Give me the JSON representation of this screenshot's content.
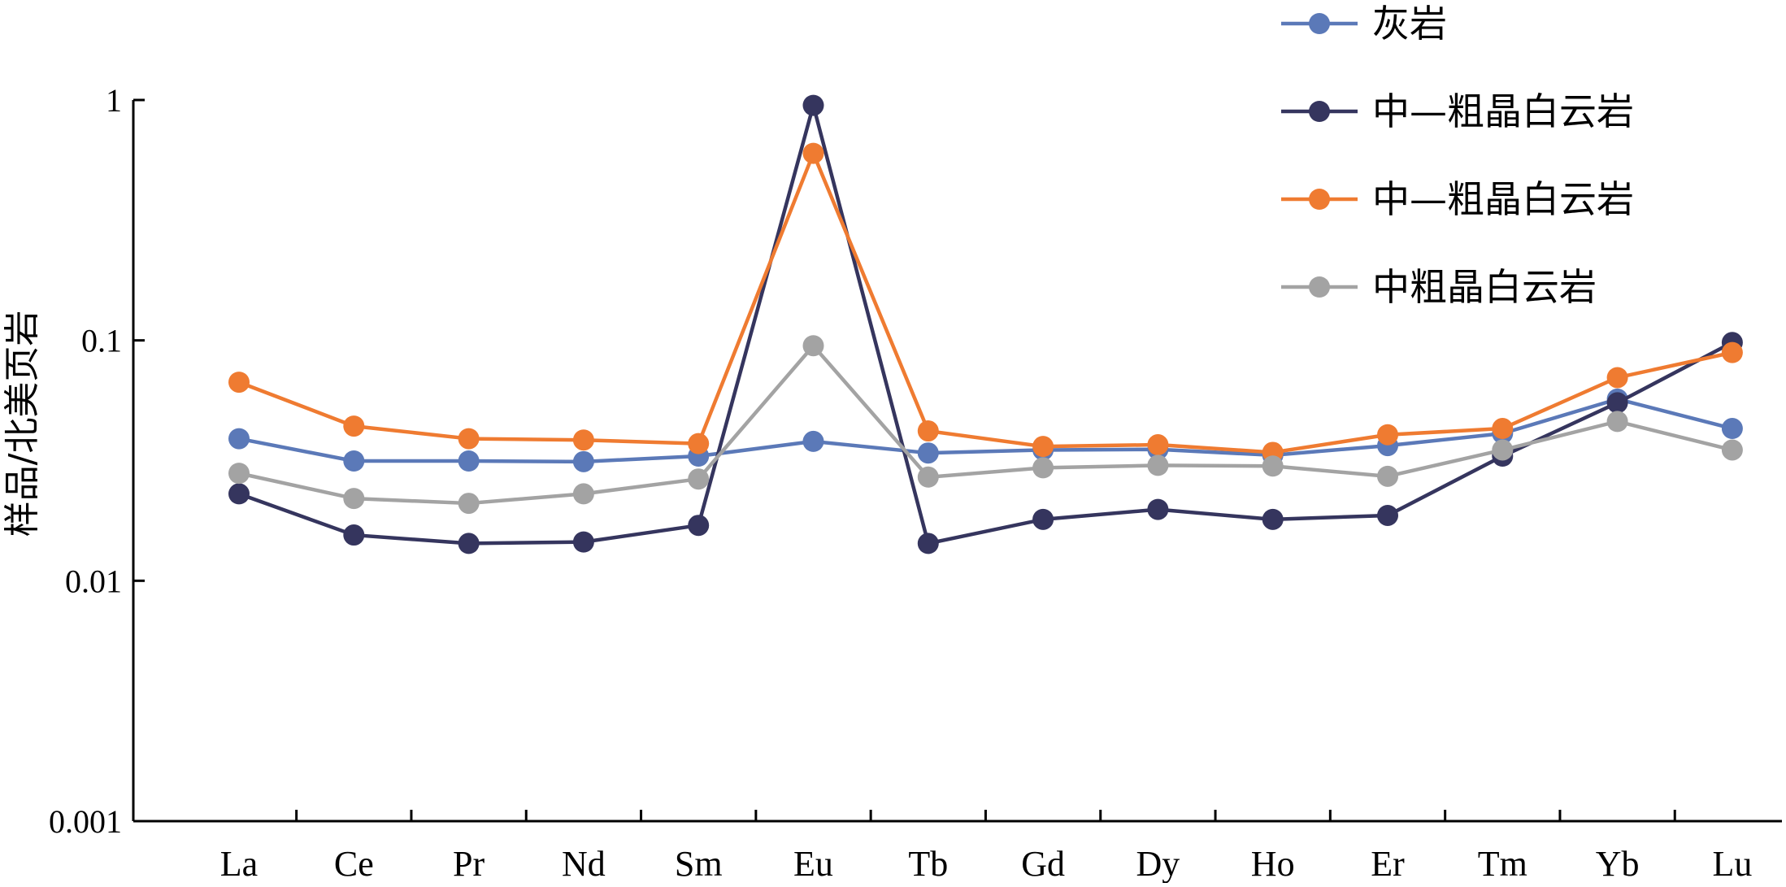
{
  "chart_data": {
    "type": "line",
    "title": "",
    "xlabel": "",
    "ylabel": "样品/北美页岩",
    "y_scale": "log",
    "ylim": [
      0.001,
      1
    ],
    "y_ticks": [
      {
        "value": 1,
        "label": "1"
      },
      {
        "value": 0.1,
        "label": "0.1"
      },
      {
        "value": 0.01,
        "label": "0.01"
      },
      {
        "value": 0.001,
        "label": "0.001"
      }
    ],
    "categories": [
      "La",
      "Ce",
      "Pr",
      "Nd",
      "Sm",
      "Eu",
      "Tb",
      "Gd",
      "Dy",
      "Ho",
      "Er",
      "Tm",
      "Yb",
      "Lu"
    ],
    "legend_position": "top-right",
    "grid": false,
    "series": [
      {
        "name": "灰岩",
        "color": "#5b79b8",
        "values": [
          0.039,
          0.0315,
          0.0315,
          0.0313,
          0.033,
          0.038,
          0.034,
          0.035,
          0.0352,
          0.0333,
          0.0365,
          0.041,
          0.057,
          0.043
        ]
      },
      {
        "name": "中—粗晶白云岩",
        "color": "#35355e",
        "values": [
          0.023,
          0.0155,
          0.0143,
          0.0145,
          0.017,
          0.95,
          0.0143,
          0.018,
          0.0198,
          0.018,
          0.0187,
          0.033,
          0.055,
          0.098
        ]
      },
      {
        "name": "中—粗晶白云岩",
        "color": "#ef7b31",
        "values": [
          0.067,
          0.044,
          0.039,
          0.0385,
          0.0372,
          0.6,
          0.042,
          0.0362,
          0.0368,
          0.0342,
          0.0405,
          0.043,
          0.07,
          0.089
        ]
      },
      {
        "name": "中粗晶白云岩",
        "color": "#a3a3a3",
        "values": [
          0.028,
          0.022,
          0.021,
          0.023,
          0.0265,
          0.095,
          0.027,
          0.0295,
          0.0302,
          0.03,
          0.0272,
          0.035,
          0.046,
          0.035
        ]
      }
    ]
  }
}
